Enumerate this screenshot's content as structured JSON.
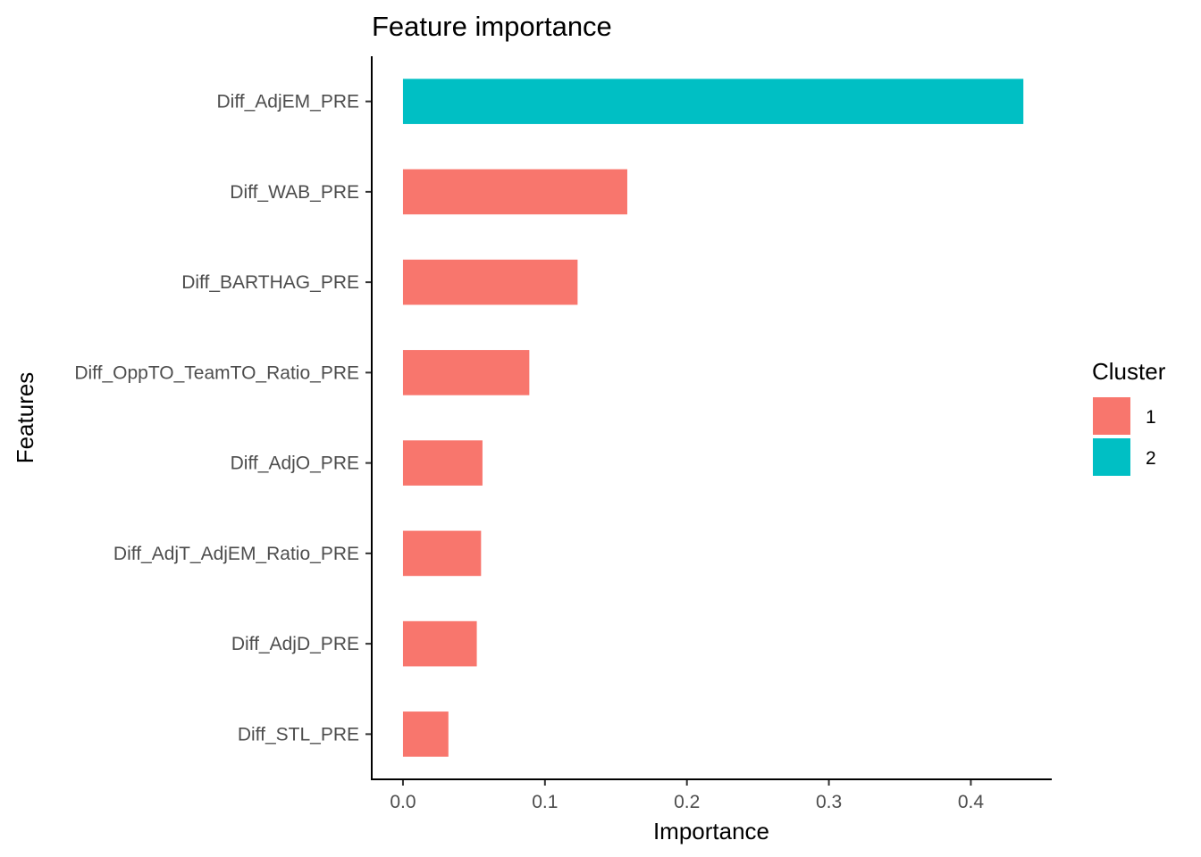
{
  "chart_data": {
    "type": "bar",
    "orientation": "horizontal",
    "title": "Feature importance",
    "xlabel": "Importance",
    "ylabel": "Features",
    "xlim": [
      -0.022,
      0.457
    ],
    "xticks": [
      "0.0",
      "0.1",
      "0.2",
      "0.3",
      "0.4"
    ],
    "grid": false,
    "legend_position": "right",
    "legend_title": "Cluster",
    "legend": [
      {
        "label": "1",
        "color": "#F8766D"
      },
      {
        "label": "2",
        "color": "#00BFC4"
      }
    ],
    "categories": [
      "Diff_AdjEM_PRE",
      "Diff_WAB_PRE",
      "Diff_BARTHAG_PRE",
      "Diff_OppTO_TeamTO_Ratio_PRE",
      "Diff_AdjO_PRE",
      "Diff_AdjT_AdjEM_Ratio_PRE",
      "Diff_AdjD_PRE",
      "Diff_STL_PRE"
    ],
    "values": [
      0.437,
      0.158,
      0.123,
      0.089,
      0.056,
      0.055,
      0.052,
      0.032
    ],
    "clusters": [
      "2",
      "1",
      "1",
      "1",
      "1",
      "1",
      "1",
      "1"
    ]
  }
}
